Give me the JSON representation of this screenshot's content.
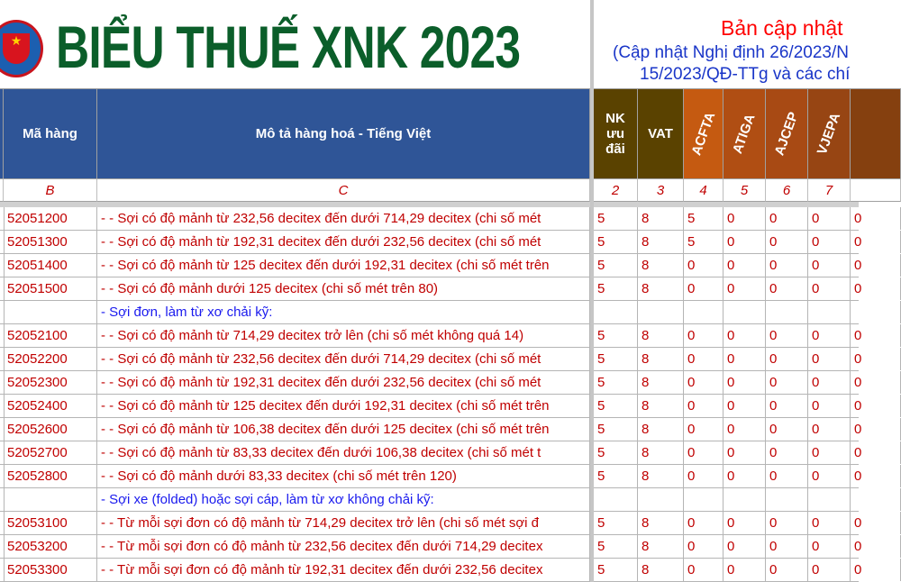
{
  "header": {
    "title": "BIỂU THUẾ XNK 2023",
    "update": "Bản cập nhật",
    "subtitle1": "(Cập nhật Nghị định 26/2023/N",
    "subtitle2": "15/2023/QĐ-TTg và các chí"
  },
  "colors": {
    "title": "#0B5E2A",
    "header_blue": "#2F5597",
    "header_brown": "#5A4200",
    "value_red": "#C00000",
    "subheading_blue": "#1A1AEE"
  },
  "columns": [
    {
      "label": "Mã hàng",
      "num": "B"
    },
    {
      "label": "Mô tả hàng hoá - Tiếng Việt",
      "num": "C"
    },
    {
      "label": "NK ưu đãi",
      "num": "2"
    },
    {
      "label": "VAT",
      "num": "3"
    },
    {
      "label": "ACFTA",
      "num": "4"
    },
    {
      "label": "ATIGA",
      "num": "5"
    },
    {
      "label": "AJCEP",
      "num": "6"
    },
    {
      "label": "VJEPA",
      "num": "7"
    },
    {
      "label": "",
      "num": ""
    }
  ],
  "rows": [
    {
      "code": "52051200",
      "desc": "- - Sợi có độ mảnh từ 232,56 decitex đến dưới 714,29 decitex (chi số mét",
      "v": [
        "5",
        "8",
        "5",
        "0",
        "0",
        "0",
        "0"
      ]
    },
    {
      "code": "52051300",
      "desc": "- - Sợi có độ mảnh từ 192,31 decitex đến dưới 232,56 decitex (chi số mét",
      "v": [
        "5",
        "8",
        "5",
        "0",
        "0",
        "0",
        "0"
      ]
    },
    {
      "code": "52051400",
      "desc": "- - Sợi có độ mảnh từ 125 decitex đến dưới 192,31 decitex (chi số mét trên",
      "v": [
        "5",
        "8",
        "0",
        "0",
        "0",
        "0",
        "0"
      ]
    },
    {
      "code": "52051500",
      "desc": "- - Sợi có độ mảnh dưới 125 decitex (chi số mét trên 80)",
      "v": [
        "5",
        "8",
        "0",
        "0",
        "0",
        "0",
        "0"
      ]
    },
    {
      "code": "",
      "desc": "- Sợi đơn, làm từ xơ chải kỹ:",
      "sub": true,
      "v": [
        "",
        "",
        "",
        "",
        "",
        "",
        ""
      ]
    },
    {
      "code": "52052100",
      "desc": "- - Sợi có độ mảnh từ 714,29 decitex trở lên (chi số mét không quá 14)",
      "v": [
        "5",
        "8",
        "0",
        "0",
        "0",
        "0",
        "0"
      ]
    },
    {
      "code": "52052200",
      "desc": "- - Sợi có độ mảnh từ 232,56 decitex đến dưới 714,29 decitex (chi số mét",
      "v": [
        "5",
        "8",
        "0",
        "0",
        "0",
        "0",
        "0"
      ]
    },
    {
      "code": "52052300",
      "desc": "- - Sợi có độ mảnh từ 192,31 decitex đến dưới 232,56 decitex (chi số mét",
      "v": [
        "5",
        "8",
        "0",
        "0",
        "0",
        "0",
        "0"
      ]
    },
    {
      "code": "52052400",
      "desc": "- - Sợi có độ mảnh từ 125 decitex đến dưới 192,31 decitex (chi số mét trên",
      "v": [
        "5",
        "8",
        "0",
        "0",
        "0",
        "0",
        "0"
      ]
    },
    {
      "code": "52052600",
      "desc": "- - Sợi có độ mảnh từ 106,38 decitex đến dưới 125 decitex (chi số mét trên",
      "v": [
        "5",
        "8",
        "0",
        "0",
        "0",
        "0",
        "0"
      ]
    },
    {
      "code": "52052700",
      "desc": "- - Sợi có độ mảnh từ 83,33 decitex đến dưới 106,38 decitex (chi số mét t",
      "v": [
        "5",
        "8",
        "0",
        "0",
        "0",
        "0",
        "0"
      ]
    },
    {
      "code": "52052800",
      "desc": "- - Sợi có độ mảnh dưới 83,33 decitex (chi số mét trên 120)",
      "v": [
        "5",
        "8",
        "0",
        "0",
        "0",
        "0",
        "0"
      ]
    },
    {
      "code": "",
      "desc": "- Sợi xe (folded) hoặc sợi cáp, làm từ xơ không chải kỹ:",
      "sub": true,
      "v": [
        "",
        "",
        "",
        "",
        "",
        "",
        ""
      ]
    },
    {
      "code": "52053100",
      "desc": "- - Từ mỗi sợi đơn có độ mảnh từ 714,29 decitex trở lên (chi số mét sợi đ",
      "v": [
        "5",
        "8",
        "0",
        "0",
        "0",
        "0",
        "0"
      ]
    },
    {
      "code": "52053200",
      "desc": "- - Từ mỗi sợi đơn có độ mảnh từ 232,56 decitex đến dưới 714,29 decitex",
      "v": [
        "5",
        "8",
        "0",
        "0",
        "0",
        "0",
        "0"
      ]
    },
    {
      "code": "52053300",
      "desc": "- - Từ mỗi sợi đơn có độ mảnh từ 192,31 decitex đến dưới 232,56 decitex",
      "v": [
        "5",
        "8",
        "0",
        "0",
        "0",
        "0",
        "0"
      ]
    }
  ]
}
